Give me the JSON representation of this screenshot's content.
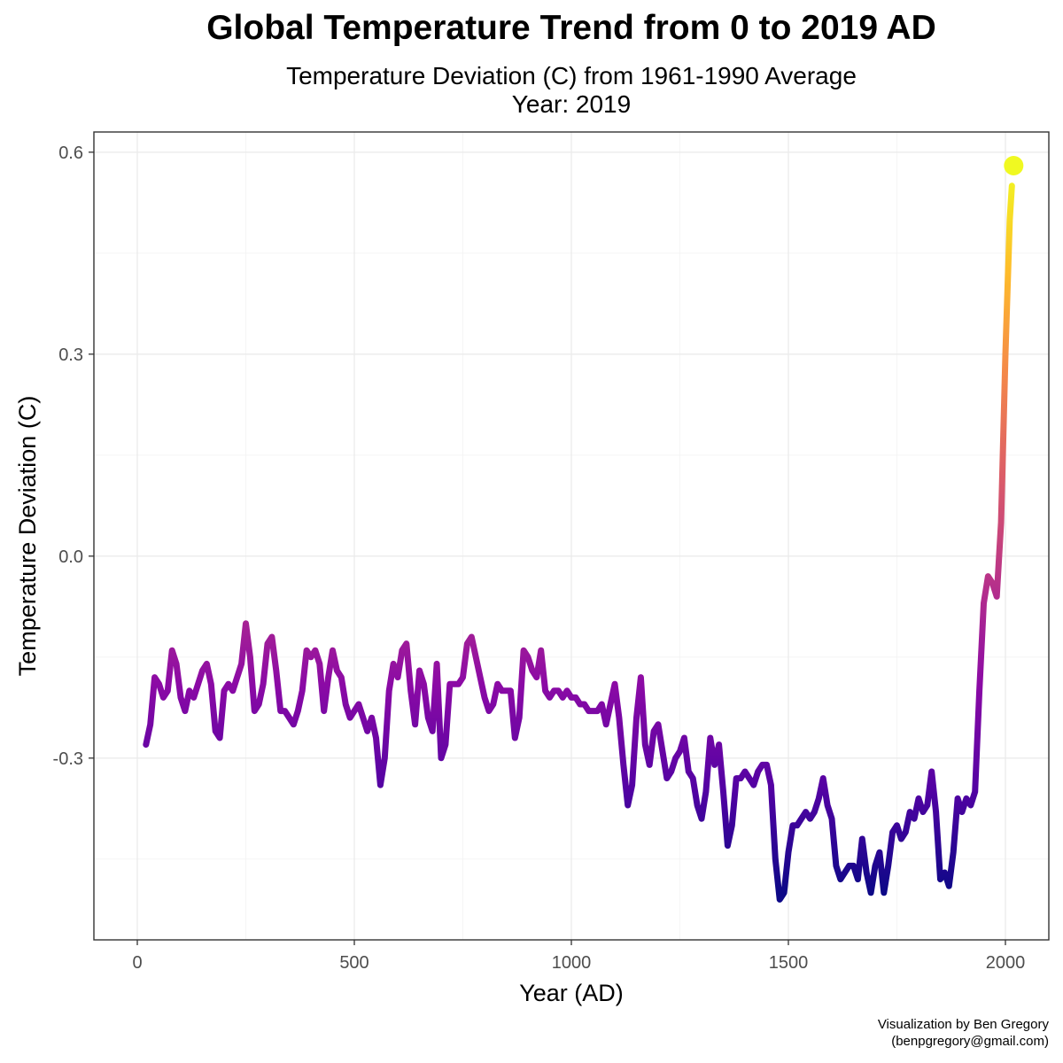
{
  "header": {
    "title": "Global Temperature Trend from 0 to 2019 AD",
    "subtitle_line1": "Temperature Deviation (C) from 1961-1990 Average",
    "subtitle_line2": "Year:  2019"
  },
  "caption": {
    "line1": "Visualization by Ben Gregory",
    "line2": "(benpgregory@gmail.com)"
  },
  "chart_data": {
    "type": "line",
    "title": "Global Temperature Trend from 0 to 2019 AD",
    "subtitle": "Temperature Deviation (C) from 1961-1990 Average",
    "xlabel": "Year (AD)",
    "ylabel": "Temperature Deviation (C)",
    "xlim": [
      -100,
      2100
    ],
    "ylim": [
      -0.57,
      0.63
    ],
    "xticks": [
      0,
      500,
      1000,
      1500,
      2000
    ],
    "xtick_labels": [
      "0",
      "500",
      "1000",
      "1500",
      "2000"
    ],
    "yticks": [
      -0.3,
      0.0,
      0.3,
      0.6
    ],
    "ytick_labels": [
      "-0.3",
      "0.0",
      "0.3",
      "0.6"
    ],
    "grid": true,
    "legend": "none",
    "color_scale": "plasma (by temperature)",
    "color_stops": [
      "#0d0887",
      "#5302a3",
      "#8b0aa5",
      "#b83289",
      "#db5c68",
      "#f48849",
      "#febd2a",
      "#f0f921"
    ],
    "highlight_point": {
      "x": 2019,
      "y": 0.58,
      "color": "#f0f921"
    },
    "series": [
      {
        "x": [
          20,
          30,
          40,
          50,
          60,
          70,
          80,
          90,
          100,
          110,
          120,
          130,
          140,
          150,
          160,
          170,
          180,
          190,
          200,
          210,
          220,
          230,
          240,
          250,
          260,
          270,
          280,
          290,
          300,
          310,
          320,
          330,
          340,
          350,
          360,
          370,
          380,
          390,
          400,
          410,
          420,
          430,
          440,
          450,
          460,
          470,
          480,
          490,
          500,
          510,
          520,
          530,
          540,
          550,
          560,
          570,
          580,
          590,
          600,
          610,
          620,
          630,
          640,
          650,
          660,
          670,
          680,
          690,
          700,
          710,
          720,
          730,
          740,
          750,
          760,
          770,
          780,
          790,
          800,
          810,
          820,
          830,
          840,
          850,
          860,
          870,
          880,
          890,
          900,
          910,
          920,
          930,
          940,
          950,
          960,
          970,
          980,
          990,
          1000,
          1010,
          1020,
          1030,
          1040,
          1050,
          1060,
          1070,
          1080,
          1090,
          1100,
          1110,
          1120,
          1130,
          1140,
          1150,
          1160,
          1170,
          1180,
          1190,
          1200,
          1210,
          1220,
          1230,
          1240,
          1250,
          1260,
          1270,
          1280,
          1290,
          1300,
          1310,
          1320,
          1330,
          1340,
          1350,
          1360,
          1370,
          1380,
          1390,
          1400,
          1410,
          1420,
          1430,
          1440,
          1450,
          1460,
          1470,
          1480,
          1490,
          1500,
          1510,
          1520,
          1530,
          1540,
          1550,
          1560,
          1570,
          1580,
          1590,
          1600,
          1610,
          1620,
          1630,
          1640,
          1650,
          1660,
          1670,
          1680,
          1690,
          1700,
          1710,
          1720,
          1730,
          1740,
          1750,
          1760,
          1770,
          1780,
          1790,
          1800,
          1810,
          1820,
          1830,
          1840,
          1850,
          1860,
          1870,
          1880,
          1890,
          1900,
          1910,
          1920,
          1930,
          1940,
          1950,
          1960,
          1970,
          1980,
          1990,
          2000,
          2010,
          2015
        ],
        "values": [
          -0.28,
          -0.25,
          -0.18,
          -0.19,
          -0.21,
          -0.2,
          -0.14,
          -0.16,
          -0.21,
          -0.23,
          -0.2,
          -0.21,
          -0.19,
          -0.17,
          -0.16,
          -0.19,
          -0.26,
          -0.27,
          -0.2,
          -0.19,
          -0.2,
          -0.18,
          -0.16,
          -0.1,
          -0.15,
          -0.23,
          -0.22,
          -0.19,
          -0.13,
          -0.12,
          -0.17,
          -0.23,
          -0.23,
          -0.24,
          -0.25,
          -0.23,
          -0.2,
          -0.14,
          -0.15,
          -0.14,
          -0.16,
          -0.23,
          -0.18,
          -0.14,
          -0.17,
          -0.18,
          -0.22,
          -0.24,
          -0.23,
          -0.22,
          -0.24,
          -0.26,
          -0.24,
          -0.27,
          -0.34,
          -0.3,
          -0.2,
          -0.16,
          -0.18,
          -0.14,
          -0.13,
          -0.2,
          -0.25,
          -0.17,
          -0.19,
          -0.24,
          -0.26,
          -0.16,
          -0.3,
          -0.28,
          -0.19,
          -0.19,
          -0.19,
          -0.18,
          -0.13,
          -0.12,
          -0.15,
          -0.18,
          -0.21,
          -0.23,
          -0.22,
          -0.19,
          -0.2,
          -0.2,
          -0.2,
          -0.27,
          -0.24,
          -0.14,
          -0.15,
          -0.17,
          -0.18,
          -0.14,
          -0.2,
          -0.21,
          -0.2,
          -0.2,
          -0.21,
          -0.2,
          -0.21,
          -0.21,
          -0.22,
          -0.22,
          -0.23,
          -0.23,
          -0.23,
          -0.22,
          -0.25,
          -0.22,
          -0.19,
          -0.24,
          -0.31,
          -0.37,
          -0.34,
          -0.24,
          -0.18,
          -0.28,
          -0.31,
          -0.26,
          -0.25,
          -0.29,
          -0.33,
          -0.32,
          -0.3,
          -0.29,
          -0.27,
          -0.32,
          -0.33,
          -0.37,
          -0.39,
          -0.35,
          -0.27,
          -0.31,
          -0.28,
          -0.35,
          -0.43,
          -0.4,
          -0.33,
          -0.33,
          -0.32,
          -0.33,
          -0.34,
          -0.32,
          -0.31,
          -0.31,
          -0.34,
          -0.45,
          -0.51,
          -0.5,
          -0.44,
          -0.4,
          -0.4,
          -0.39,
          -0.38,
          -0.39,
          -0.38,
          -0.36,
          -0.33,
          -0.37,
          -0.39,
          -0.46,
          -0.48,
          -0.47,
          -0.46,
          -0.46,
          -0.48,
          -0.42,
          -0.47,
          -0.5,
          -0.46,
          -0.44,
          -0.5,
          -0.46,
          -0.41,
          -0.4,
          -0.42,
          -0.41,
          -0.38,
          -0.39,
          -0.36,
          -0.38,
          -0.37,
          -0.32,
          -0.38,
          -0.48,
          -0.47,
          -0.49,
          -0.44,
          -0.36,
          -0.38,
          -0.36,
          -0.37,
          -0.35,
          -0.2,
          -0.07,
          -0.03,
          -0.04,
          -0.06,
          0.05,
          0.3,
          0.5,
          0.55
        ]
      }
    ]
  }
}
